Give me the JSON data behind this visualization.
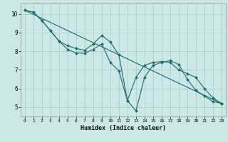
{
  "xlabel": "Humidex (Indice chaleur)",
  "background_color": "#cce8e6",
  "grid_color": "#aad4d0",
  "line_color": "#1a6b6b",
  "xlim": [
    -0.5,
    23.5
  ],
  "ylim": [
    4.5,
    10.6
  ],
  "yticks": [
    5,
    6,
    7,
    8,
    9,
    10
  ],
  "xticks": [
    0,
    1,
    2,
    3,
    4,
    5,
    6,
    7,
    8,
    9,
    10,
    11,
    12,
    13,
    14,
    15,
    16,
    17,
    18,
    19,
    20,
    21,
    22,
    23
  ],
  "line1_x": [
    0,
    1,
    2,
    3,
    4,
    5,
    6,
    7,
    8,
    9,
    10,
    11,
    12,
    13,
    14,
    15,
    16,
    17,
    18,
    19,
    20,
    21,
    22,
    23
  ],
  "line1_y": [
    10.2,
    10.1,
    9.65,
    9.1,
    8.55,
    8.1,
    7.9,
    7.9,
    8.1,
    8.4,
    7.4,
    6.95,
    5.35,
    4.8,
    6.6,
    7.25,
    7.4,
    7.5,
    7.3,
    6.5,
    5.9,
    5.6,
    5.3,
    5.2
  ],
  "line2_x": [
    0,
    1,
    2,
    3,
    4,
    5,
    6,
    7,
    8,
    9,
    10,
    11,
    12,
    13,
    14,
    15,
    16,
    17,
    18,
    19,
    20,
    21,
    22,
    23
  ],
  "line2_y": [
    10.2,
    10.1,
    9.65,
    9.1,
    8.55,
    8.3,
    8.15,
    8.05,
    8.4,
    8.85,
    8.5,
    7.8,
    5.35,
    6.6,
    7.25,
    7.4,
    7.45,
    7.4,
    7.0,
    6.8,
    6.6,
    6.0,
    5.5,
    5.2
  ],
  "line3_x": [
    0,
    23
  ],
  "line3_y": [
    10.2,
    5.2
  ]
}
